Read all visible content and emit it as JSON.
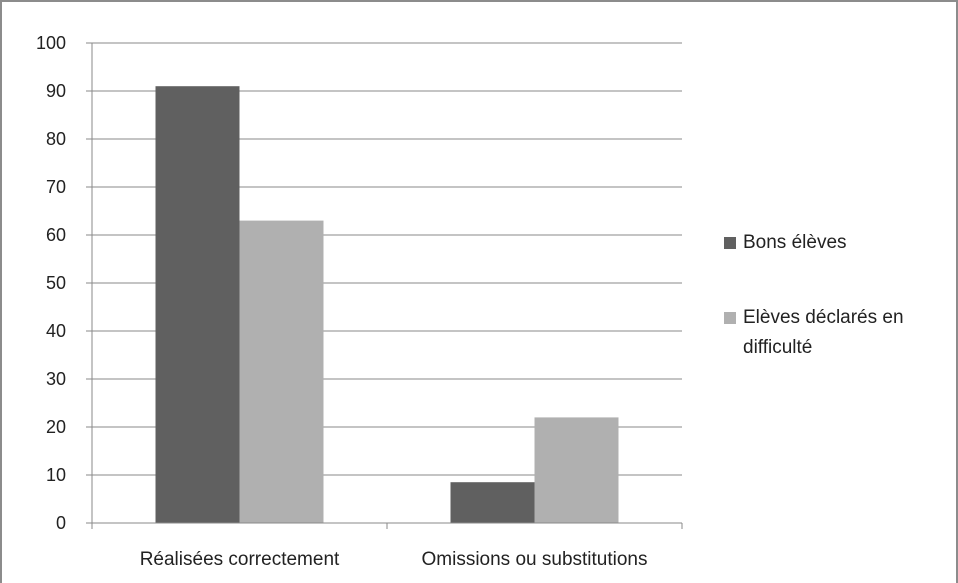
{
  "chart_data": {
    "type": "bar",
    "title": "",
    "xlabel": "",
    "ylabel": "",
    "categories": [
      "Réalisées correctement",
      "Omissions ou substitutions"
    ],
    "series": [
      {
        "name": "Bons élèves",
        "values": [
          91,
          8.5
        ],
        "color": "#606060"
      },
      {
        "name": "Elèves déclarés en difficulté",
        "values": [
          63,
          22
        ],
        "color": "#b0b0b0"
      }
    ],
    "ylim": [
      0,
      100
    ],
    "yticks": [
      0,
      10,
      20,
      30,
      40,
      50,
      60,
      70,
      80,
      90,
      100
    ],
    "grid": true,
    "legend": "right"
  },
  "legend_lines": [
    [
      "Bons élèves"
    ],
    [
      "Elèves déclarés en",
      "difficulté"
    ]
  ],
  "colors": {
    "gridline": "#8a8a8a",
    "axis": "#8a8a8a",
    "frame": "#8c8c8c"
  }
}
